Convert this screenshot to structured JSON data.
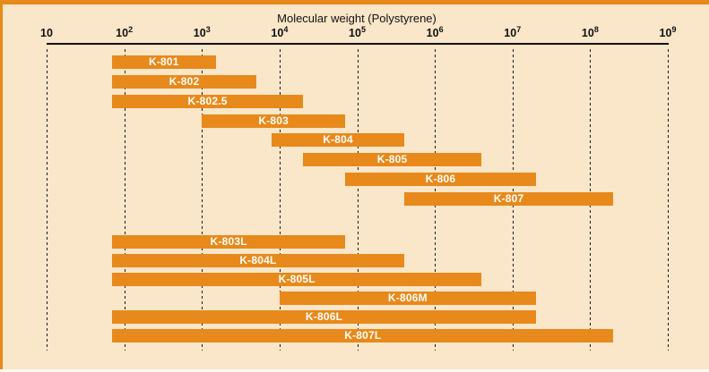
{
  "colors": {
    "background": "#FAE6C9",
    "bar": "#E8891B",
    "bar_label": "#FFFFFF",
    "grid": "#1C1C1C",
    "text": "#111111"
  },
  "chart_data": {
    "type": "bar",
    "orientation": "horizontal-range",
    "title": "Molecular weight (Polystyrene)",
    "xlabel": "Molecular weight (Polystyrene)",
    "ylabel": "",
    "x_axis": {
      "scale": "log",
      "min": 10,
      "max": 1000000000,
      "ticks": [
        {
          "base": "10",
          "exp": ""
        },
        {
          "base": "10",
          "exp": "2"
        },
        {
          "base": "10",
          "exp": "3"
        },
        {
          "base": "10",
          "exp": "4"
        },
        {
          "base": "10",
          "exp": "5"
        },
        {
          "base": "10",
          "exp": "6"
        },
        {
          "base": "10",
          "exp": "7"
        },
        {
          "base": "10",
          "exp": "8"
        },
        {
          "base": "10",
          "exp": "9"
        }
      ]
    },
    "grid": "vertical-dashed",
    "legend": "none",
    "series": [
      {
        "label": "K-801",
        "min": 70,
        "max": 1500,
        "group": "standard"
      },
      {
        "label": "K-802",
        "min": 70,
        "max": 5000,
        "group": "standard"
      },
      {
        "label": "K-802.5",
        "min": 70,
        "max": 20000,
        "group": "standard"
      },
      {
        "label": "K-803",
        "min": 1000,
        "max": 70000,
        "group": "standard"
      },
      {
        "label": "K-804",
        "min": 8000,
        "max": 400000,
        "group": "standard"
      },
      {
        "label": "K-805",
        "min": 20000,
        "max": 4000000,
        "group": "standard"
      },
      {
        "label": "K-806",
        "min": 70000,
        "max": 20000000,
        "group": "standard"
      },
      {
        "label": "K-807",
        "min": 400000,
        "max": 200000000,
        "group": "standard"
      },
      {
        "label": "K-803L",
        "min": 70,
        "max": 70000,
        "group": "linear"
      },
      {
        "label": "K-804L",
        "min": 70,
        "max": 400000,
        "group": "linear"
      },
      {
        "label": "K-805L",
        "min": 70,
        "max": 4000000,
        "group": "linear"
      },
      {
        "label": "K-806M",
        "min": 10000,
        "max": 20000000,
        "group": "linear"
      },
      {
        "label": "K-806L",
        "min": 70,
        "max": 20000000,
        "group": "linear"
      },
      {
        "label": "K-807L",
        "min": 70,
        "max": 200000000,
        "group": "linear"
      }
    ]
  }
}
